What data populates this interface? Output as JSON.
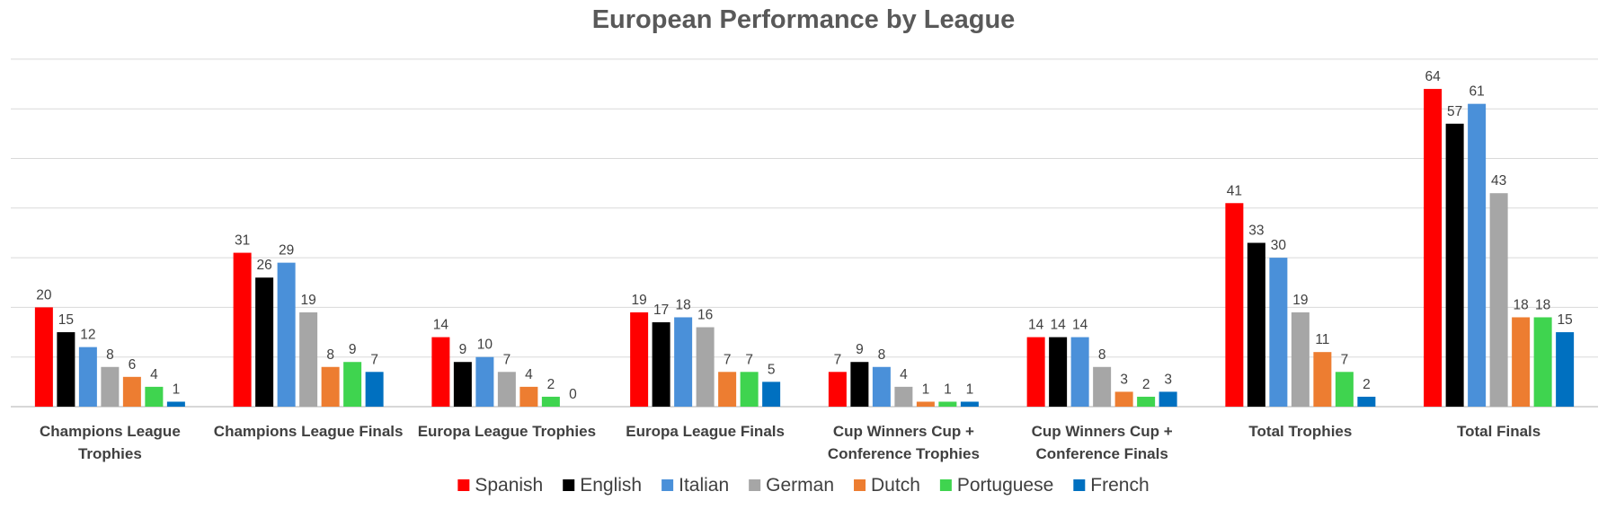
{
  "chart_data": {
    "type": "bar",
    "title": "European Performance by League",
    "xlabel": "",
    "ylabel": "",
    "ylim": [
      0,
      70
    ],
    "grid": true,
    "legend_position": "bottom",
    "categories": [
      [
        "Champions League",
        "Trophies"
      ],
      [
        "Champions League Finals"
      ],
      [
        "Europa League Trophies"
      ],
      [
        "Europa League Finals"
      ],
      [
        "Cup Winners Cup +",
        "Conference Trophies"
      ],
      [
        "Cup Winners Cup +",
        "Conference Finals"
      ],
      [
        "Total Trophies"
      ],
      [
        "Total Finals"
      ]
    ],
    "series": [
      {
        "name": "Spanish",
        "color": "#ff0000",
        "values": [
          20,
          31,
          14,
          19,
          7,
          14,
          41,
          64
        ]
      },
      {
        "name": "English",
        "color": "#000000",
        "values": [
          15,
          26,
          9,
          17,
          9,
          14,
          33,
          57
        ]
      },
      {
        "name": "Italian",
        "color": "#4a90d9",
        "values": [
          12,
          29,
          10,
          18,
          8,
          14,
          30,
          61
        ]
      },
      {
        "name": "German",
        "color": "#a6a6a6",
        "values": [
          8,
          19,
          7,
          16,
          4,
          8,
          19,
          43
        ]
      },
      {
        "name": "Dutch",
        "color": "#ed7d31",
        "values": [
          6,
          8,
          4,
          7,
          1,
          3,
          11,
          18
        ]
      },
      {
        "name": "Portuguese",
        "color": "#3fd44f",
        "values": [
          4,
          9,
          2,
          7,
          1,
          2,
          7,
          18
        ]
      },
      {
        "name": "French",
        "color": "#0070c0",
        "values": [
          1,
          7,
          0,
          5,
          1,
          3,
          2,
          15
        ]
      }
    ]
  }
}
